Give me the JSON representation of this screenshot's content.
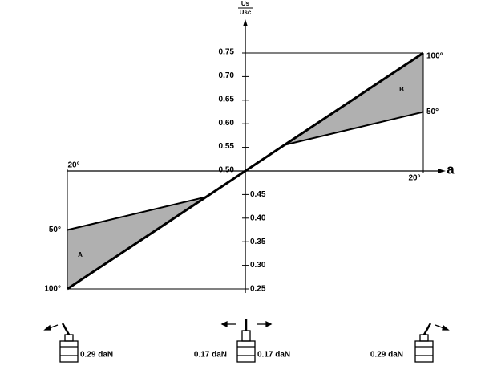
{
  "chart_data": {
    "type": "line",
    "y_label_top": "Us",
    "y_label_bottom": "Usc",
    "x_label": "a",
    "x": [
      -20,
      -4.4,
      0,
      4.4,
      20
    ],
    "series": [
      {
        "name": "100°",
        "color": "#000000",
        "values": [
          0.25,
          0.445,
          0.5,
          0.555,
          0.75
        ]
      },
      {
        "name": "50°",
        "color": "#000000",
        "values": [
          0.375,
          0.445,
          0.5,
          0.555,
          0.625
        ]
      }
    ],
    "fill_color": "#b0b0b0",
    "annotations": [
      "A",
      "B"
    ],
    "xlim": [
      -20,
      20
    ],
    "xticks": [
      {
        "value": -20,
        "label": "20°"
      },
      {
        "value": 20,
        "label": "20°"
      }
    ],
    "ylim": [
      0.25,
      0.75
    ],
    "yticks": [
      0.25,
      {
        "value": 0.3,
        "label": "0.30"
      },
      0.35,
      {
        "value": 0.4,
        "label": "0.40"
      },
      0.45,
      {
        "value": 0.5,
        "label": "0.50"
      },
      0.55,
      {
        "value": 0.6,
        "label": "0.60"
      },
      0.65,
      {
        "value": 0.7,
        "label": "0.70"
      },
      0.75
    ],
    "grid": false
  },
  "footer": {
    "labels": [
      "0.29 daN",
      "0.17 daN",
      "0.17 daN",
      "0.29 daN"
    ]
  }
}
